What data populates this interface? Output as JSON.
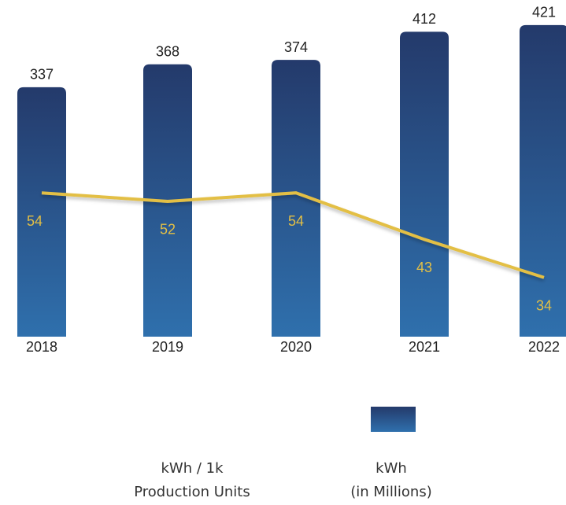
{
  "chart_data": {
    "type": "bar",
    "categories": [
      "2018",
      "2019",
      "2020",
      "2021",
      "2022"
    ],
    "series": [
      {
        "name": [
          "kWh",
          "(in Millions)"
        ],
        "type": "bar",
        "color": "#2c5f9c",
        "color_top": "#243a6b",
        "color_bottom": "#2f70ad",
        "values": [
          337,
          368,
          374,
          412,
          421
        ]
      },
      {
        "name": [
          "kWh / 1k",
          "Production Units"
        ],
        "type": "line",
        "axis": "y2",
        "color": "#e3bf45",
        "values": [
          54,
          52,
          54,
          43,
          34
        ]
      }
    ],
    "ylim": [
      0,
      440
    ],
    "y2lim": [
      20,
      97
    ],
    "grid": false
  }
}
